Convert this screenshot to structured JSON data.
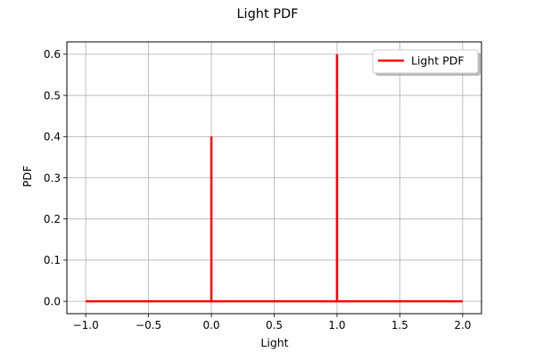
{
  "chart_data": {
    "type": "line",
    "title": "Light PDF",
    "xlabel": "Light",
    "ylabel": "PDF",
    "xlim": [
      -1.15,
      2.15
    ],
    "ylim": [
      -0.03,
      0.63
    ],
    "xticks": [
      -1.0,
      -0.5,
      0.0,
      0.5,
      1.0,
      1.5,
      2.0
    ],
    "xtick_labels": [
      "−1.0",
      "−0.5",
      "0.0",
      "0.5",
      "1.0",
      "1.5",
      "2.0"
    ],
    "yticks": [
      0.0,
      0.1,
      0.2,
      0.3,
      0.4,
      0.5,
      0.6
    ],
    "ytick_labels": [
      "0.0",
      "0.1",
      "0.2",
      "0.3",
      "0.4",
      "0.5",
      "0.6"
    ],
    "grid": true,
    "legend_position": "top-right",
    "series": [
      {
        "name": "Light PDF",
        "color": "#ff0000",
        "x": [
          -1.0,
          0.0,
          0.0,
          0.0,
          1.0,
          1.0,
          1.0,
          2.0
        ],
        "y": [
          0.0,
          0.0,
          0.4,
          0.0,
          0.0,
          0.6,
          0.0,
          0.0
        ]
      }
    ]
  }
}
